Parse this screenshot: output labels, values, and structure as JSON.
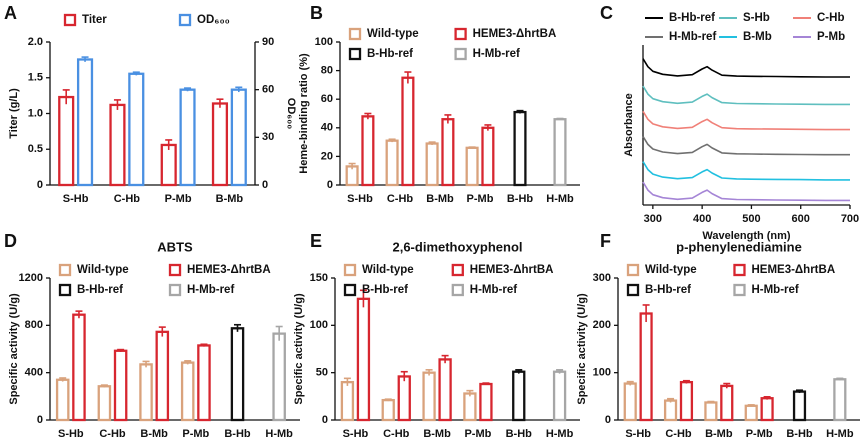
{
  "chart_data": [
    {
      "panel": "A",
      "type": "bar",
      "ylabel": "Titer (g/L)",
      "y2label": "OD₆₀₀",
      "categories": [
        "S-Hb",
        "C-Hb",
        "P-Mb",
        "B-Mb"
      ],
      "series": [
        {
          "name": "Titer",
          "color": "#d7262f",
          "values": [
            1.23,
            1.12,
            0.56,
            1.14
          ],
          "errors": [
            0.1,
            0.07,
            0.07,
            0.06
          ]
        },
        {
          "name": "OD₆₀₀",
          "color": "#4a90e2",
          "axis": "y2",
          "values": [
            79,
            70,
            60,
            60
          ],
          "errors": [
            1.5,
            1,
            1,
            1.5
          ]
        }
      ],
      "ylim": [
        0,
        2
      ],
      "yticks": [
        0,
        0.5,
        {
          "value": 1,
          "label": "1.0"
        },
        1.5,
        {
          "value": 2,
          "label": "2.0"
        }
      ],
      "y2lim": [
        0,
        90
      ],
      "y2ticks": [
        0,
        30,
        60,
        90
      ]
    },
    {
      "panel": "B",
      "type": "bar",
      "ylabel": "Heme-binding ratio (%)",
      "categories": [
        "S-Hb",
        "C-Hb",
        "B-Mb",
        "P-Mb",
        "B-Hb",
        "H-Mb"
      ],
      "series": [
        {
          "name": "Wild-type",
          "color": "#d9a27c",
          "values": [
            13,
            31,
            29,
            26,
            null,
            null
          ],
          "errors": [
            2,
            1,
            1,
            0.5,
            null,
            null
          ]
        },
        {
          "name": "HEME3-ΔhrtBA",
          "color": "#d7262f",
          "values": [
            48,
            75,
            46,
            40,
            null,
            null
          ],
          "errors": [
            2,
            4,
            3,
            2,
            null,
            null
          ]
        },
        {
          "name": "B-Hb-ref",
          "color": "#111111",
          "values": [
            null,
            null,
            null,
            null,
            51,
            null
          ],
          "errors": [
            null,
            null,
            null,
            null,
            1,
            null
          ]
        },
        {
          "name": "H-Mb-ref",
          "color": "#a6a6a6",
          "values": [
            null,
            null,
            null,
            null,
            null,
            46
          ],
          "errors": [
            null,
            null,
            null,
            null,
            null,
            0.5
          ]
        }
      ],
      "ylim": [
        0,
        100
      ],
      "yticks": [
        0,
        20,
        40,
        60,
        80,
        100
      ]
    },
    {
      "panel": "C",
      "type": "line",
      "ylabel": "Absorbance",
      "xlabel": "Wavelength (nm)",
      "x": [
        280,
        290,
        300,
        320,
        350,
        380,
        400,
        410,
        420,
        440,
        470,
        500,
        550,
        600,
        650,
        700
      ],
      "series": [
        {
          "name": "B-Hb-ref",
          "color": "#000000",
          "values": [
            6.4,
            6.05,
            5.85,
            5.72,
            5.65,
            5.7,
            5.95,
            6.05,
            5.9,
            5.68,
            5.64,
            5.63,
            5.62,
            5.61,
            5.6,
            5.6
          ]
        },
        {
          "name": "S-Hb",
          "color": "#5fbfbf",
          "values": [
            5.2,
            4.85,
            4.65,
            4.52,
            4.45,
            4.5,
            4.75,
            4.85,
            4.7,
            4.48,
            4.44,
            4.43,
            4.42,
            4.41,
            4.4,
            4.4
          ]
        },
        {
          "name": "C-Hb",
          "color": "#f08078",
          "values": [
            4.1,
            3.75,
            3.55,
            3.42,
            3.35,
            3.4,
            3.65,
            3.75,
            3.6,
            3.38,
            3.34,
            3.33,
            3.32,
            3.31,
            3.3,
            3.3
          ]
        },
        {
          "name": "H-Mb-ref",
          "color": "#707070",
          "values": [
            3.0,
            2.65,
            2.45,
            2.32,
            2.25,
            2.3,
            2.55,
            2.65,
            2.5,
            2.28,
            2.24,
            2.23,
            2.22,
            2.21,
            2.2,
            2.2
          ]
        },
        {
          "name": "B-Mb",
          "color": "#22c0e0",
          "values": [
            1.9,
            1.55,
            1.35,
            1.22,
            1.15,
            1.2,
            1.45,
            1.55,
            1.4,
            1.18,
            1.14,
            1.13,
            1.12,
            1.11,
            1.1,
            1.1
          ]
        },
        {
          "name": "P-Mb",
          "color": "#a585d6",
          "values": [
            1.0,
            0.65,
            0.45,
            0.32,
            0.25,
            0.3,
            0.55,
            0.65,
            0.5,
            0.28,
            0.24,
            0.23,
            0.22,
            0.21,
            0.2,
            0.2
          ]
        }
      ],
      "xlim": [
        280,
        700
      ],
      "xticks": [
        300,
        400,
        500,
        600,
        700
      ],
      "ylim": [
        0,
        7
      ]
    },
    {
      "panel": "D",
      "type": "bar",
      "title": "ABTS",
      "ylabel": "Specific activity (U/g)",
      "categories": [
        "S-Hb",
        "C-Hb",
        "B-Mb",
        "P-Mb",
        "B-Hb",
        "H-Mb"
      ],
      "series": [
        {
          "name": "Wild-type",
          "color": "#d9a27c",
          "values": [
            340,
            285,
            470,
            485,
            null,
            null
          ],
          "errors": [
            15,
            10,
            25,
            15,
            null,
            null
          ]
        },
        {
          "name": "HEME3-ΔhrtBA",
          "color": "#d7262f",
          "values": [
            890,
            585,
            745,
            630,
            null,
            null
          ],
          "errors": [
            30,
            10,
            40,
            10,
            null,
            null
          ]
        },
        {
          "name": "B-Hb-ref",
          "color": "#111111",
          "values": [
            null,
            null,
            null,
            null,
            775,
            null
          ],
          "errors": [
            null,
            null,
            null,
            null,
            30,
            null
          ]
        },
        {
          "name": "H-Mb-ref",
          "color": "#a6a6a6",
          "values": [
            null,
            null,
            null,
            null,
            null,
            730
          ],
          "errors": [
            null,
            null,
            null,
            null,
            null,
            60
          ]
        }
      ],
      "ylim": [
        0,
        1200
      ],
      "yticks": [
        0,
        400,
        800,
        1200
      ]
    },
    {
      "panel": "E",
      "type": "bar",
      "title": "2,6-dimethoxyphenol",
      "ylabel": "Specific activity (U/g)",
      "categories": [
        "S-Hb",
        "C-Hb",
        "B-Mb",
        "P-Mb",
        "B-Hb",
        "H-Mb"
      ],
      "series": [
        {
          "name": "Wild-type",
          "color": "#d9a27c",
          "values": [
            40,
            21,
            50,
            28,
            null,
            null
          ],
          "errors": [
            4,
            1,
            3,
            3,
            null,
            null
          ]
        },
        {
          "name": "HEME3-ΔhrtBA",
          "color": "#d7262f",
          "values": [
            128,
            46,
            64,
            38,
            null,
            null
          ],
          "errors": [
            9,
            5,
            4,
            1,
            null,
            null
          ]
        },
        {
          "name": "B-Hb-ref",
          "color": "#111111",
          "values": [
            null,
            null,
            null,
            null,
            51,
            null
          ],
          "errors": [
            null,
            null,
            null,
            null,
            2,
            null
          ]
        },
        {
          "name": "H-Mb-ref",
          "color": "#a6a6a6",
          "values": [
            null,
            null,
            null,
            null,
            null,
            51
          ],
          "errors": [
            null,
            null,
            null,
            null,
            null,
            2
          ]
        }
      ],
      "ylim": [
        0,
        150
      ],
      "yticks": [
        0,
        50,
        100,
        150
      ]
    },
    {
      "panel": "F",
      "type": "bar",
      "title": "p-phenylenediamine",
      "ylabel": "Specific activity (U/g)",
      "categories": [
        "S-Hb",
        "C-Hb",
        "B-Mb",
        "P-Mb",
        "B-Hb",
        "H-Mb"
      ],
      "series": [
        {
          "name": "Wild-type",
          "color": "#d9a27c",
          "values": [
            77,
            41,
            37,
            30,
            null,
            null
          ],
          "errors": [
            4,
            4,
            2,
            2,
            null,
            null
          ]
        },
        {
          "name": "HEME3-ΔhrtBA",
          "color": "#d7262f",
          "values": [
            225,
            80,
            72,
            46,
            null,
            null
          ],
          "errors": [
            18,
            3,
            5,
            3,
            null,
            null
          ]
        },
        {
          "name": "B-Hb-ref",
          "color": "#111111",
          "values": [
            null,
            null,
            null,
            null,
            60,
            null
          ],
          "errors": [
            null,
            null,
            null,
            null,
            3,
            null
          ]
        },
        {
          "name": "H-Mb-ref",
          "color": "#a6a6a6",
          "values": [
            null,
            null,
            null,
            null,
            null,
            86
          ],
          "errors": [
            null,
            null,
            null,
            null,
            null,
            2
          ]
        }
      ],
      "ylim": [
        0,
        300
      ],
      "yticks": [
        0,
        100,
        200,
        300
      ]
    }
  ]
}
